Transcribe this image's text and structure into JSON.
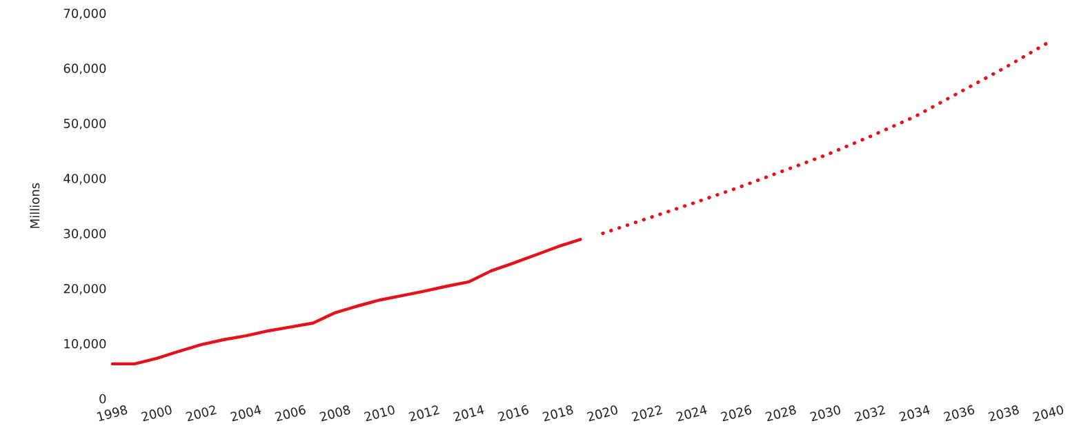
{
  "chart_data": {
    "type": "line",
    "ylabel": "Millions",
    "series": [
      {
        "color": "#e3121b",
        "line_style": "solid",
        "x": [
          1998,
          1999,
          2000,
          2001,
          2002,
          2003,
          2004,
          2005,
          2006,
          2007,
          2008,
          2009,
          2010,
          2011,
          2012,
          2013,
          2014,
          2015,
          2016,
          2017,
          2018,
          2019
        ],
        "values": [
          6300,
          6300,
          7300,
          8600,
          9800,
          10700,
          11400,
          12300,
          13000,
          13700,
          15600,
          16800,
          17900,
          18700,
          19500,
          20400,
          21200,
          23200,
          24600,
          26100,
          27600,
          28900
        ]
      },
      {
        "color": "#e3121b",
        "line_style": "dotted",
        "x": [
          2020,
          2022,
          2024,
          2026,
          2028,
          2030,
          2032,
          2034,
          2036,
          2038,
          2040
        ],
        "values": [
          30000,
          32700,
          35400,
          38200,
          41200,
          44200,
          47600,
          51200,
          55600,
          60000,
          64700
        ]
      }
    ],
    "xlim": [
      1998,
      2040
    ],
    "xticks": [
      1998,
      2000,
      2002,
      2004,
      2006,
      2008,
      2010,
      2012,
      2014,
      2016,
      2018,
      2020,
      2022,
      2024,
      2026,
      2028,
      2030,
      2032,
      2034,
      2036,
      2038,
      2040
    ],
    "ylim": [
      0,
      70000
    ],
    "yticks": [
      {
        "value": 0,
        "label": "0"
      },
      {
        "value": 10000,
        "label": "10,000"
      },
      {
        "value": 20000,
        "label": "20,000"
      },
      {
        "value": 30000,
        "label": "30,000"
      },
      {
        "value": 40000,
        "label": "40,000"
      },
      {
        "value": 50000,
        "label": "50,000"
      },
      {
        "value": 60000,
        "label": "60,000"
      },
      {
        "value": 70000,
        "label": "70,000"
      }
    ],
    "marker": "none"
  }
}
